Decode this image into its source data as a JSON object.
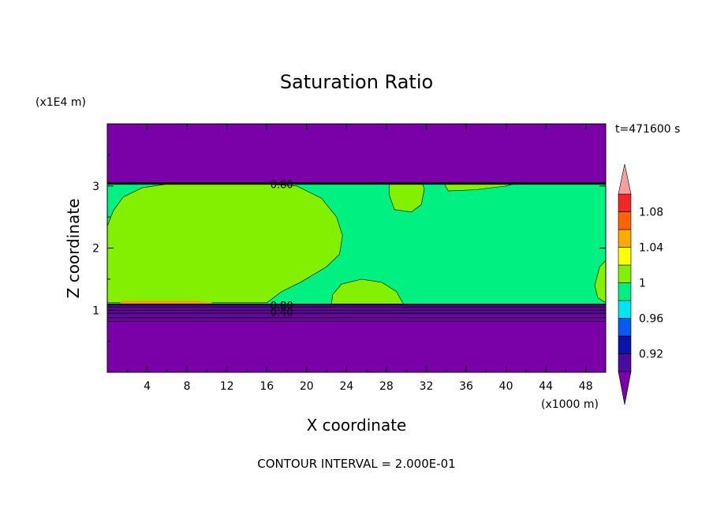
{
  "chart_data": {
    "type": "heatmap",
    "title": "Saturation Ratio",
    "xlabel": "X coordinate",
    "ylabel": "Z coordinate",
    "x_units": "(x1000 m)",
    "y_units": "(x1E4 m)",
    "time_label": "t=471600 s",
    "footer": "CONTOUR INTERVAL = 2.000E-01",
    "xlim": [
      0,
      50
    ],
    "ylim": [
      0,
      4
    ],
    "x_ticks": [
      4,
      8,
      12,
      16,
      20,
      24,
      28,
      32,
      36,
      40,
      44,
      48
    ],
    "x_tick_labels": [
      "4",
      "8",
      "12",
      "16",
      "20",
      "24",
      "28",
      "32",
      "36",
      "40",
      "44",
      "48"
    ],
    "y_ticks": [
      1,
      2,
      3
    ],
    "y_tick_labels": [
      "1",
      "2",
      "3"
    ],
    "contour_labels": [
      {
        "text": "0.80",
        "x": 17.5,
        "y": 3.03
      },
      {
        "text": "0.80",
        "x": 17.5,
        "y": 1.08
      },
      {
        "text": "0.40",
        "x": 17.5,
        "y": 0.97
      }
    ],
    "colorbar": {
      "levels": [
        0.9,
        0.92,
        0.94,
        0.96,
        0.98,
        1.0,
        1.02,
        1.04,
        1.06,
        1.08,
        1.1
      ],
      "colors": [
        "#4b0aa0",
        "#0a14a8",
        "#0a5af0",
        "#00e6f0",
        "#00f082",
        "#82f000",
        "#ffff00",
        "#ffaa00",
        "#ff6400",
        "#f02828"
      ],
      "under_color": "#7a00a8",
      "over_color": "#f4a0a0",
      "tick_values": [
        0.92,
        0.96,
        1.0,
        1.04,
        1.08
      ],
      "tick_labels": [
        "0.92",
        "0.96",
        "1",
        "1.04",
        "1.08"
      ]
    },
    "regions": {
      "dry_color": "#7a00a8",
      "moist_color": "#00f082",
      "super_color": "#82f000",
      "moist_band_z": [
        1.1,
        3.05
      ],
      "dark_layers_z": [
        0.82,
        1.1
      ]
    }
  }
}
